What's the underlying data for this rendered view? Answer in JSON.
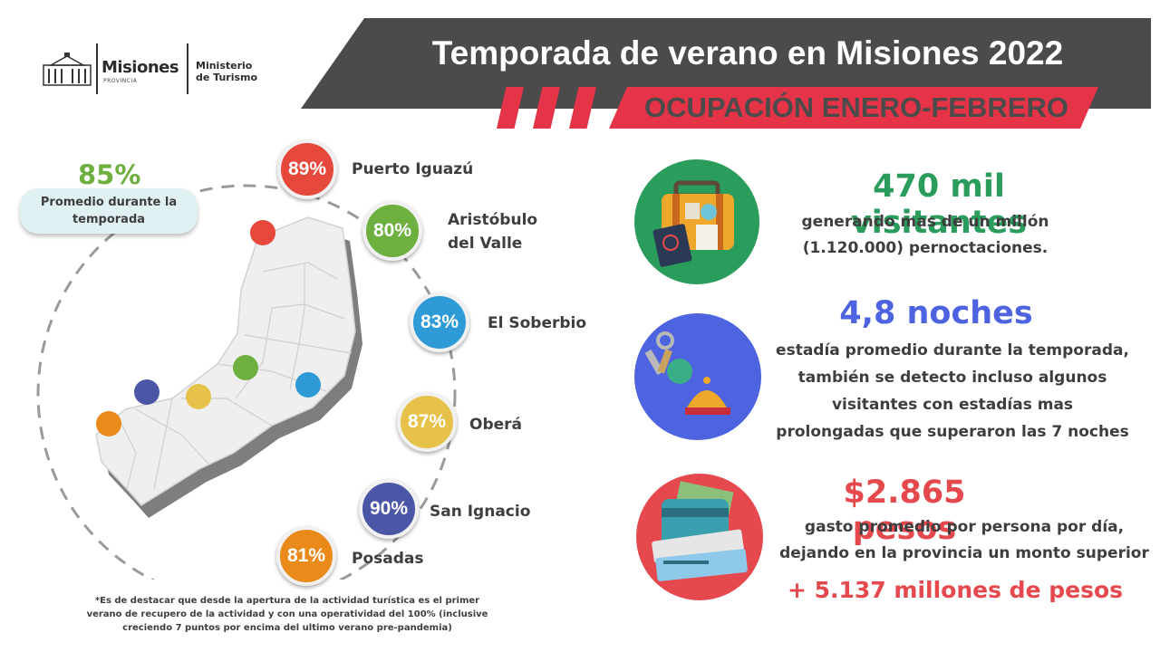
{
  "logo": {
    "brand": "Misiones",
    "province": "PROVINCIA",
    "ministry_line1": "Ministerio",
    "ministry_line2": "de Turismo"
  },
  "header": {
    "title": "Temporada de verano en Misiones 2022",
    "subtitle": "OCUPACIÓN ENERO-FEBRERO"
  },
  "average": {
    "value": "85%",
    "label": "Promedio durante la temporada"
  },
  "cities": [
    {
      "name": "Puerto Iguazú",
      "value": "89%",
      "color": "#e6483c"
    },
    {
      "name": "Aristóbulo del Valle",
      "value": "80%",
      "color": "#6db03f"
    },
    {
      "name": "El Soberbio",
      "value": "83%",
      "color": "#2e9ad6"
    },
    {
      "name": "Oberá",
      "value": "87%",
      "color": "#e6c24a"
    },
    {
      "name": "San Ignacio",
      "value": "90%",
      "color": "#4c56a6"
    },
    {
      "name": "Posadas",
      "value": "81%",
      "color": "#ea8a1a"
    }
  ],
  "stats": [
    {
      "icon": "suitcase-icon",
      "headline": "470 mil visitantes",
      "color": "#2a9d5c",
      "lines": [
        "generando mas de un millón",
        "(1.120.000) pernoctaciones."
      ]
    },
    {
      "icon": "keys-bell-icon",
      "headline": "4,8 noches",
      "color": "#4e63e0",
      "lines": [
        "estadía promedio durante la temporada,",
        "también se detecto incluso algunos",
        "visitantes con estadías mas",
        "prolongadas que superaron las 7 noches"
      ]
    },
    {
      "icon": "wallet-tickets-icon",
      "headline": "$2.865 pesos",
      "color": "#e5484d",
      "lines": [
        "gasto promedio por persona por día,",
        "dejando en la provincia un monto superior"
      ],
      "highlight": "+ 5.137 millones de pesos"
    }
  ],
  "footnote": "*Es de destacar que desde la apertura de la actividad turística es el primer verano de recupero de la actividad y con una operatividad del 100% (inclusive creciendo 7 puntos por encima del ultimo verano pre-pandemia)"
}
